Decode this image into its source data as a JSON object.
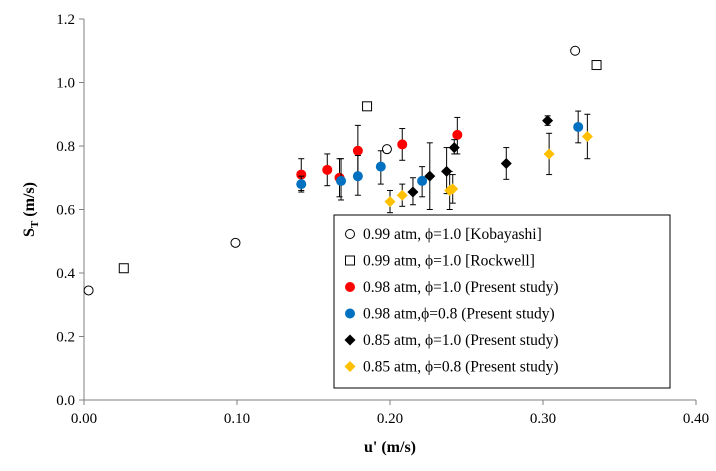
{
  "chart_data": {
    "type": "scatter",
    "xlabel": "u' (m/s)",
    "ylabel": {
      "main": "S",
      "sub": "T",
      "rest": " (m/s)"
    },
    "xlim": [
      0.0,
      0.4
    ],
    "ylim": [
      0.0,
      1.2
    ],
    "x_ticks": [
      0.0,
      0.1,
      0.2,
      0.3,
      0.4
    ],
    "x_tick_labels": [
      "0.00",
      "0.10",
      "0.20",
      "0.30",
      "0.40"
    ],
    "y_ticks": [
      0.0,
      0.2,
      0.4,
      0.6,
      0.8,
      1.0,
      1.2
    ],
    "y_tick_labels": [
      "0.0",
      "0.2",
      "0.4",
      "0.6",
      "0.8",
      "1.0",
      "1.2"
    ],
    "grid": false,
    "legend_position": "bottom-right",
    "series": [
      {
        "name": "0.99 atm, ϕ=1.0 [Kobayashi]",
        "marker": "circle-open",
        "color": "#000000",
        "points": [
          {
            "x": 0.003,
            "y": 0.345
          },
          {
            "x": 0.099,
            "y": 0.495
          },
          {
            "x": 0.198,
            "y": 0.79
          },
          {
            "x": 0.321,
            "y": 1.1
          }
        ]
      },
      {
        "name": "0.99 atm, ϕ=1.0 [Rockwell]",
        "marker": "square-open",
        "color": "#000000",
        "points": [
          {
            "x": 0.026,
            "y": 0.415
          },
          {
            "x": 0.185,
            "y": 0.925
          },
          {
            "x": 0.335,
            "y": 1.055
          }
        ]
      },
      {
        "name": "0.98 atm, ϕ=1.0 (Present study)",
        "marker": "circle",
        "color": "#ff0000",
        "points": [
          {
            "x": 0.142,
            "y": 0.71,
            "lo": 0.66,
            "hi": 0.76
          },
          {
            "x": 0.159,
            "y": 0.725,
            "lo": 0.675,
            "hi": 0.775
          },
          {
            "x": 0.167,
            "y": 0.7,
            "lo": 0.64,
            "hi": 0.76
          },
          {
            "x": 0.179,
            "y": 0.785,
            "lo": 0.705,
            "hi": 0.865
          },
          {
            "x": 0.208,
            "y": 0.805,
            "lo": 0.755,
            "hi": 0.855
          },
          {
            "x": 0.244,
            "y": 0.835,
            "lo": 0.775,
            "hi": 0.89
          }
        ]
      },
      {
        "name": "0.98 atm,ϕ=0.8 (Present study)",
        "marker": "circle",
        "color": "#0070c0",
        "points": [
          {
            "x": 0.142,
            "y": 0.68,
            "lo": 0.655,
            "hi": 0.705
          },
          {
            "x": 0.168,
            "y": 0.69,
            "lo": 0.63,
            "hi": 0.76
          },
          {
            "x": 0.179,
            "y": 0.705,
            "lo": 0.645,
            "hi": 0.77
          },
          {
            "x": 0.194,
            "y": 0.735,
            "lo": 0.68,
            "hi": 0.785
          },
          {
            "x": 0.221,
            "y": 0.69,
            "lo": 0.64,
            "hi": 0.735
          },
          {
            "x": 0.323,
            "y": 0.86,
            "lo": 0.81,
            "hi": 0.91
          }
        ]
      },
      {
        "name": "0.85 atm, ϕ=1.0 (Present study)",
        "marker": "diamond",
        "color": "#000000",
        "points": [
          {
            "x": 0.215,
            "y": 0.655,
            "lo": 0.615,
            "hi": 0.7
          },
          {
            "x": 0.226,
            "y": 0.705,
            "lo": 0.6,
            "hi": 0.81
          },
          {
            "x": 0.237,
            "y": 0.72,
            "lo": 0.65,
            "hi": 0.795
          },
          {
            "x": 0.242,
            "y": 0.795,
            "lo": 0.775,
            "hi": 0.82
          },
          {
            "x": 0.276,
            "y": 0.745,
            "lo": 0.695,
            "hi": 0.795
          },
          {
            "x": 0.303,
            "y": 0.88,
            "lo": 0.865,
            "hi": 0.895
          }
        ]
      },
      {
        "name": "0.85 atm, ϕ=0.8 (Present study)",
        "marker": "diamond",
        "color": "#ffc000",
        "points": [
          {
            "x": 0.2,
            "y": 0.625,
            "lo": 0.59,
            "hi": 0.66
          },
          {
            "x": 0.208,
            "y": 0.645,
            "lo": 0.61,
            "hi": 0.68
          },
          {
            "x": 0.239,
            "y": 0.66,
            "lo": 0.6,
            "hi": 0.72
          },
          {
            "x": 0.241,
            "y": 0.665,
            "lo": 0.62,
            "hi": 0.71
          },
          {
            "x": 0.304,
            "y": 0.775,
            "lo": 0.71,
            "hi": 0.84
          },
          {
            "x": 0.329,
            "y": 0.83,
            "lo": 0.76,
            "hi": 0.9
          }
        ]
      }
    ]
  }
}
